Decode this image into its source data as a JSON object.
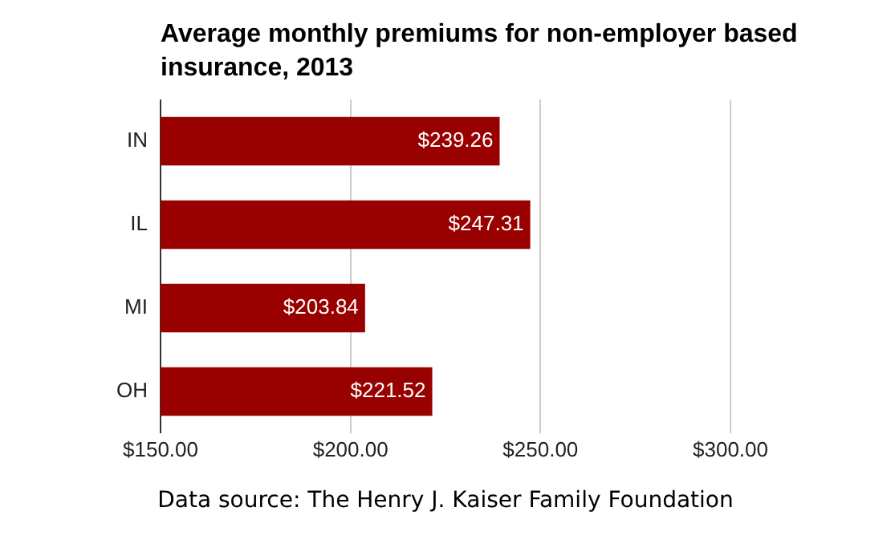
{
  "chart_data": {
    "type": "bar",
    "orientation": "horizontal",
    "title": "Average monthly premiums for non-employer based insurance, 2013",
    "categories": [
      "IN",
      "IL",
      "MI",
      "OH"
    ],
    "values": [
      239.26,
      247.31,
      203.84,
      221.52
    ],
    "value_labels": [
      "$239.26",
      "$247.31",
      "$203.84",
      "$221.52"
    ],
    "color": "#990000",
    "xlim": [
      150,
      300
    ],
    "xticks": [
      {
        "value": 150,
        "label": "$150.00"
      },
      {
        "value": 200,
        "label": "$200.00"
      },
      {
        "value": 250,
        "label": "$250.00"
      },
      {
        "value": 300,
        "label": "$300.00"
      }
    ],
    "grid": "x",
    "legend": false,
    "annotations": [
      "Data source: The Henry J. Kaiser Family Foundation"
    ]
  }
}
